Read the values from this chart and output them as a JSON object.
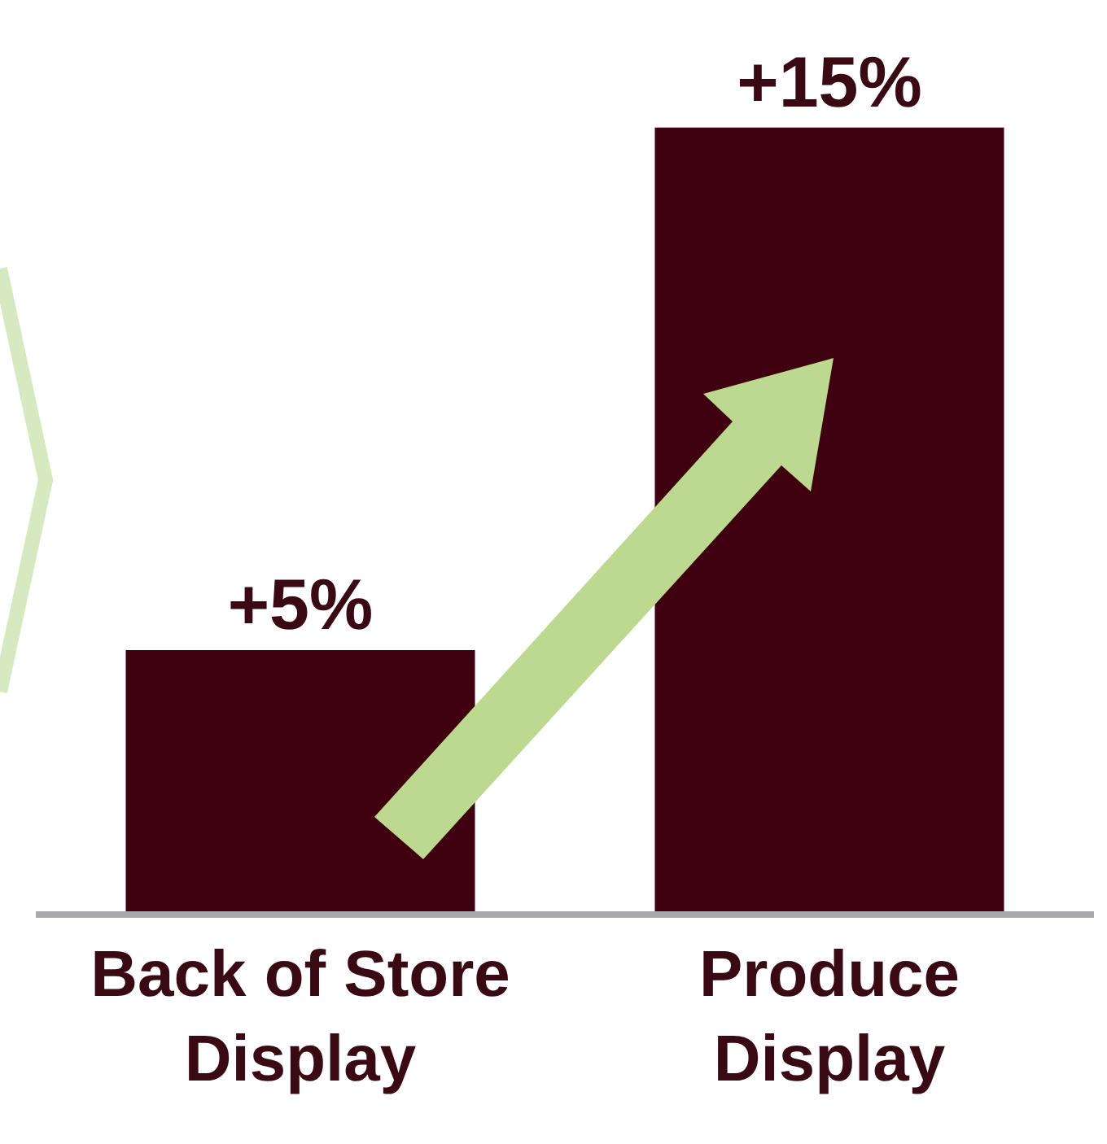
{
  "chart_data": {
    "type": "bar",
    "categories": [
      "Back of Store Display",
      "Produce Display"
    ],
    "values": [
      5,
      15
    ],
    "color": "#3f0010",
    "value_labels": [
      "+5%",
      "+15%"
    ],
    "grid": false,
    "legend": false
  }
}
